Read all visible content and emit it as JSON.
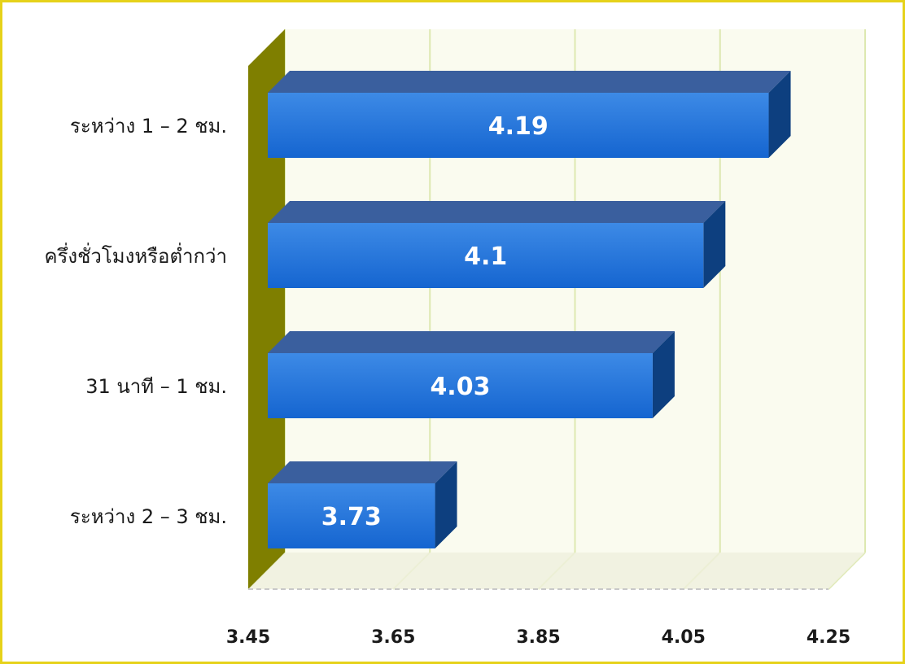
{
  "chart_data": {
    "type": "bar",
    "orientation": "horizontal",
    "style": "3d",
    "categories": [
      "ระหว่าง 1 – 2 ชม.",
      "ครึ่งชั่วโมงหรือต่ำกว่า",
      "31 นาที – 1 ชม.",
      "ระหว่าง 2 – 3 ชม."
    ],
    "values": [
      4.19,
      4.1,
      4.03,
      3.73
    ],
    "value_labels": [
      "4.19",
      "4.1",
      "4.03",
      "3.73"
    ],
    "xlim": [
      3.45,
      4.25
    ],
    "ticks": [
      "3.45",
      "3.65",
      "3.85",
      "4.05",
      "4.25"
    ],
    "title": "",
    "xlabel": "",
    "ylabel": "",
    "grid": true,
    "legend": "none",
    "colors": {
      "bar_front": "#1565d0",
      "bar_top": "#3a5f9e",
      "bar_side": "#0d3f7f",
      "wall": "#fafbef",
      "gridline": "#dde8b0",
      "left_wall": "#7f7f00",
      "floor": "#eef0dc",
      "frame": "#e6d21a"
    }
  }
}
